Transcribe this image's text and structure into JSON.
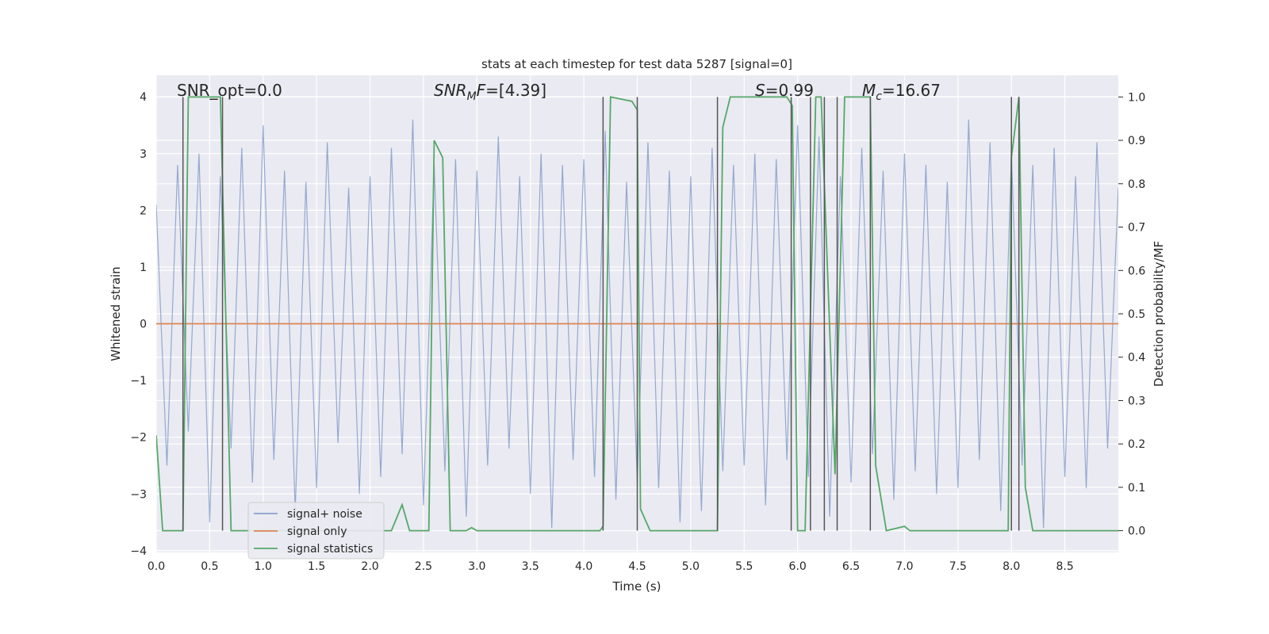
{
  "chart_data": {
    "type": "line",
    "title": "stats at each timestep for test data 5287 [signal=0]",
    "xlabel": "Time (s)",
    "ylabel": "Whitened strain",
    "y2label": "Detection probability/MF",
    "xlim": [
      0,
      9.0
    ],
    "ylim": [
      -4.03,
      4.38
    ],
    "y2lim": [
      -0.05,
      1.05
    ],
    "xticks": [
      {
        "value": 0,
        "label": "0.0"
      },
      {
        "value": 0.5,
        "label": "0.5"
      },
      {
        "value": 1,
        "label": "1.0"
      },
      {
        "value": 1.5,
        "label": "1.5"
      },
      {
        "value": 2,
        "label": "2.0"
      },
      {
        "value": 2.5,
        "label": "2.5"
      },
      {
        "value": 3,
        "label": "3.0"
      },
      {
        "value": 3.5,
        "label": "3.5"
      },
      {
        "value": 4,
        "label": "4.0"
      },
      {
        "value": 4.5,
        "label": "4.5"
      },
      {
        "value": 5,
        "label": "5.0"
      },
      {
        "value": 5.5,
        "label": "5.5"
      },
      {
        "value": 6,
        "label": "6.0"
      },
      {
        "value": 6.5,
        "label": "6.5"
      },
      {
        "value": 7,
        "label": "7.0"
      },
      {
        "value": 7.5,
        "label": "7.5"
      },
      {
        "value": 8,
        "label": "8.0"
      },
      {
        "value": 8.5,
        "label": "8.5"
      }
    ],
    "yticks": [
      {
        "value": -4,
        "label": "−4"
      },
      {
        "value": -3,
        "label": "−3"
      },
      {
        "value": -2,
        "label": "−2"
      },
      {
        "value": -1,
        "label": "−1"
      },
      0,
      1,
      2,
      3,
      4
    ],
    "y2ticks": [
      {
        "value": 0,
        "label": "0.0"
      },
      {
        "value": 0.1,
        "label": "0.1"
      },
      {
        "value": 0.2,
        "label": "0.2"
      },
      {
        "value": 0.3,
        "label": "0.3"
      },
      {
        "value": 0.4,
        "label": "0.4"
      },
      {
        "value": 0.5,
        "label": "0.5"
      },
      {
        "value": 0.6,
        "label": "0.6"
      },
      {
        "value": 0.7,
        "label": "0.7"
      },
      {
        "value": 0.8,
        "label": "0.8"
      },
      {
        "value": 0.9,
        "label": "0.9"
      },
      {
        "value": 1,
        "label": "1.0"
      }
    ],
    "grid": true,
    "series": [
      {
        "name": "signal+ noise",
        "color": "#4c72b0",
        "x": [
          0.0,
          0.1,
          0.2,
          0.3,
          0.4,
          0.5,
          0.6,
          0.7,
          0.8,
          0.9,
          1.0,
          1.1,
          1.2,
          1.3,
          1.4,
          1.5,
          1.6,
          1.7,
          1.8,
          1.9,
          2.0,
          2.1,
          2.2,
          2.3,
          2.4,
          2.5,
          2.6,
          2.7,
          2.8,
          2.9,
          3.0,
          3.1,
          3.2,
          3.3,
          3.4,
          3.5,
          3.6,
          3.7,
          3.8,
          3.9,
          4.0,
          4.1,
          4.2,
          4.3,
          4.4,
          4.5,
          4.6,
          4.7,
          4.8,
          4.9,
          5.0,
          5.1,
          5.2,
          5.3,
          5.4,
          5.5,
          5.6,
          5.7,
          5.8,
          5.9,
          6.0,
          6.1,
          6.2,
          6.3,
          6.4,
          6.5,
          6.6,
          6.7,
          6.8,
          6.9,
          7.0,
          7.1,
          7.2,
          7.3,
          7.4,
          7.5,
          7.6,
          7.7,
          7.8,
          7.9,
          8.0,
          8.1,
          8.2,
          8.3,
          8.4,
          8.5,
          8.6,
          8.7,
          8.8,
          8.9,
          9.0
        ],
        "values": [
          2.1,
          -2.5,
          2.8,
          -1.9,
          3.0,
          -3.5,
          2.6,
          -2.2,
          3.1,
          -2.8,
          3.5,
          -2.4,
          2.7,
          -3.3,
          2.5,
          -2.9,
          3.2,
          -2.1,
          2.4,
          -3.0,
          2.6,
          -2.7,
          3.1,
          -2.3,
          3.6,
          -3.2,
          2.8,
          -2.6,
          2.9,
          -3.4,
          2.7,
          -2.5,
          3.3,
          -2.2,
          2.6,
          -3.0,
          3.0,
          -3.6,
          2.8,
          -2.4,
          2.9,
          -2.7,
          3.4,
          -3.1,
          2.5,
          -2.8,
          3.2,
          -2.9,
          2.7,
          -3.5,
          2.6,
          -3.3,
          3.1,
          -2.6,
          2.8,
          -2.5,
          3.0,
          -3.2,
          2.9,
          -2.4,
          3.5,
          -2.7,
          3.3,
          -3.4,
          2.6,
          -2.8,
          3.1,
          -2.3,
          2.7,
          -3.1,
          3.0,
          -2.6,
          2.8,
          -3.0,
          2.5,
          -2.9,
          3.6,
          -2.4,
          3.2,
          -3.3,
          3.0,
          -2.5,
          2.8,
          -3.6,
          3.1,
          -2.7,
          2.6,
          -2.9,
          3.2,
          -2.2,
          2.4
        ]
      },
      {
        "name": "signal only",
        "color": "#dd8452",
        "x": [
          0,
          9.0
        ],
        "values": [
          0,
          0
        ]
      },
      {
        "name": "signal statistics",
        "color": "#55a868",
        "axis": "y2",
        "x": [
          0,
          0.06,
          0.25,
          0.3,
          0.6,
          0.7,
          2.2,
          2.3,
          2.37,
          2.55,
          2.6,
          2.68,
          2.75,
          2.9,
          2.95,
          3.0,
          4.15,
          4.18,
          4.25,
          4.45,
          4.5,
          4.53,
          4.62,
          5.25,
          5.3,
          5.37,
          5.9,
          5.95,
          6.0,
          6.07,
          6.17,
          6.22,
          6.35,
          6.44,
          6.5,
          6.68,
          6.73,
          6.83,
          7.0,
          7.05,
          7.97,
          8.0,
          8.07,
          8.13,
          8.2,
          9.0
        ],
        "values": [
          0.22,
          0,
          0,
          1,
          1,
          0,
          0,
          0.06,
          0,
          0,
          0.9,
          0.86,
          0,
          0,
          0.007,
          0,
          0,
          0.01,
          1,
          0.99,
          0.97,
          0.05,
          0,
          0,
          0.93,
          1,
          1,
          0.98,
          0,
          0,
          1,
          1,
          0.13,
          1,
          1,
          1,
          0.15,
          0,
          0.01,
          0,
          0,
          0.86,
          1,
          0.1,
          0,
          0
        ]
      }
    ],
    "vlines": {
      "color": "#555555",
      "x": [
        0.25,
        0.62,
        4.18,
        4.5,
        5.25,
        5.94,
        6.12,
        6.25,
        6.37,
        6.68,
        8.0,
        8.07
      ],
      "range": [
        0,
        1
      ]
    },
    "annotations": [
      [
        {
          "text": "SNR_opt=0.0"
        }
      ],
      [
        {
          "text": "SNR",
          "italic": true
        },
        {
          "text": "M",
          "italic": true,
          "sub": true
        },
        {
          "text": "F",
          "italic": true
        },
        {
          "text": "=[4.39]"
        }
      ],
      [
        {
          "text": "S",
          "italic": true
        },
        {
          "text": "=0.99"
        }
      ],
      [
        {
          "text": "M",
          "italic": true
        },
        {
          "text": "c",
          "italic": true,
          "sub": true
        },
        {
          "text": "=16.67"
        }
      ]
    ]
  }
}
